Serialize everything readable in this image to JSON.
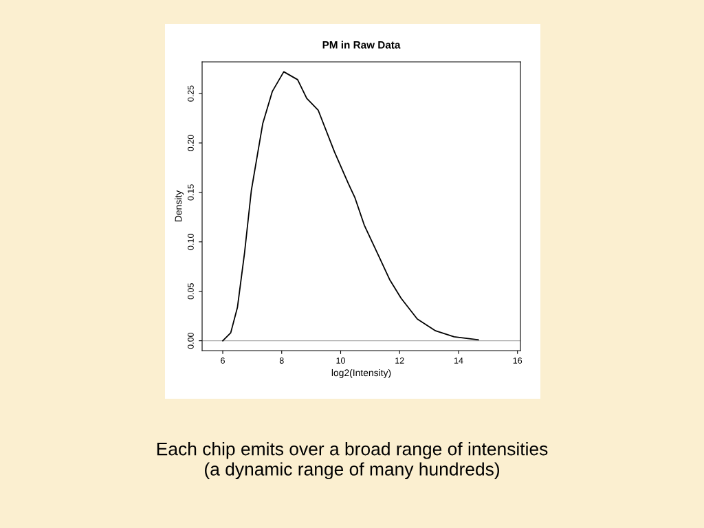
{
  "chart_data": {
    "type": "line",
    "title": "PM in Raw Data",
    "xlabel": "log2(Intensity)",
    "ylabel": "Density",
    "x": [
      6.0,
      6.27,
      6.5,
      6.74,
      6.97,
      7.17,
      7.36,
      7.68,
      8.07,
      8.54,
      8.85,
      9.24,
      9.79,
      10.26,
      10.48,
      10.8,
      11.27,
      11.66,
      12.05,
      12.6,
      13.22,
      13.85,
      14.67
    ],
    "series": [
      {
        "color": "#000000",
        "values": [
          0.0,
          0.008,
          0.034,
          0.089,
          0.152,
          0.187,
          0.22,
          0.252,
          0.272,
          0.264,
          0.245,
          0.233,
          0.191,
          0.159,
          0.145,
          0.117,
          0.087,
          0.062,
          0.043,
          0.022,
          0.01,
          0.004,
          0.001
        ]
      }
    ],
    "xlim": [
      5.3,
      16.1
    ],
    "ylim": [
      -0.01,
      0.282
    ],
    "xticks": [
      6,
      8,
      10,
      12,
      14,
      16
    ],
    "yticks": [
      {
        "value": 0,
        "label": "0.00"
      },
      0.05,
      {
        "value": 0.1,
        "label": "0.10"
      },
      0.15,
      {
        "value": 0.2,
        "label": "0.20"
      },
      0.25
    ],
    "ref_lines": [
      {
        "axis": "y",
        "value": 0,
        "color": "#aaaaaa"
      }
    ],
    "grid": false,
    "legend": false,
    "marker": "none",
    "line_style": "solid",
    "annotations": [
      "Each chip emits over a broad range of intensities\n(a dynamic range of many hundreds)"
    ]
  }
}
